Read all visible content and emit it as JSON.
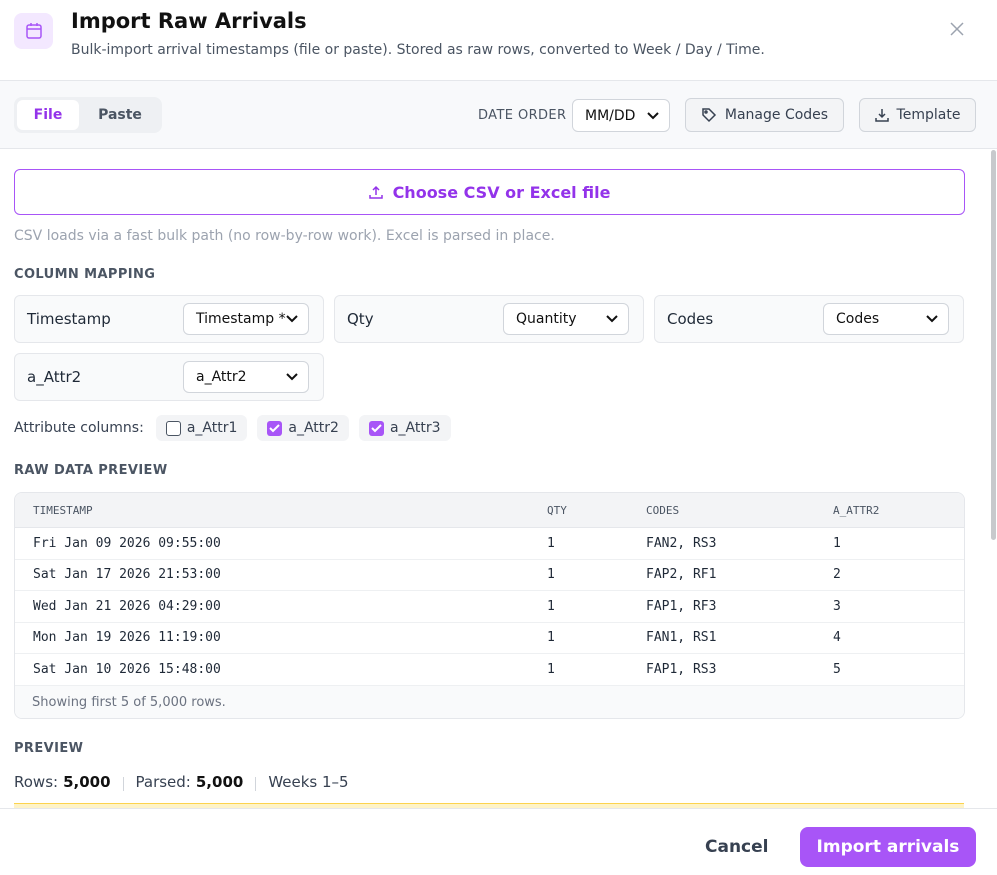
{
  "header": {
    "title": "Import Raw Arrivals",
    "subtitle": "Bulk-import arrival timestamps (file or paste). Stored as raw rows, converted to Week / Day / Time."
  },
  "tabs": [
    "File",
    "Paste"
  ],
  "date_order": {
    "label": "DATE ORDER",
    "value": "MM/DD"
  },
  "buttons": {
    "manage_codes": "Manage Codes",
    "template": "Template",
    "choose_file": "Choose CSV or Excel file",
    "cancel": "Cancel",
    "import": "Import arrivals"
  },
  "file_hint": "CSV loads via a fast bulk path (no row-by-row work). Excel is parsed in place.",
  "column_mapping": {
    "title": "COLUMN MAPPING",
    "fields": [
      {
        "label": "Timestamp",
        "value": "Timestamp *"
      },
      {
        "label": "Qty",
        "value": "Quantity"
      },
      {
        "label": "Codes",
        "value": "Codes"
      },
      {
        "label": "a_Attr2",
        "value": "a_Attr2"
      }
    ]
  },
  "attribute_columns": {
    "label": "Attribute columns:",
    "options": [
      {
        "label": "a_Attr1",
        "checked": false
      },
      {
        "label": "a_Attr2",
        "checked": true
      },
      {
        "label": "a_Attr3",
        "checked": true
      }
    ]
  },
  "raw_preview": {
    "title": "RAW DATA PREVIEW",
    "columns": [
      "TIMESTAMP",
      "QTY",
      "CODES",
      "A_ATTR2"
    ],
    "rows": [
      [
        "Fri Jan 09 2026 09:55:00",
        1,
        "FAN2, RS3",
        1
      ],
      [
        "Sat Jan 17 2026 21:53:00",
        1,
        "FAP2, RF1",
        2
      ],
      [
        "Wed Jan 21 2026 04:29:00",
        1,
        "FAP1, RF3",
        3
      ],
      [
        "Mon Jan 19 2026 11:19:00",
        1,
        "FAN1, RS1",
        4
      ],
      [
        "Sat Jan 10 2026 15:48:00",
        1,
        "FAP1, RS3",
        5
      ]
    ],
    "footer": "Showing first 5 of 5,000 rows."
  },
  "preview": {
    "title": "PREVIEW",
    "stats": [
      {
        "label": "Rows:",
        "value": "5,000"
      },
      {
        "label": "Parsed:",
        "value": "5,000"
      },
      {
        "label": "Weeks 1–5"
      }
    ]
  }
}
